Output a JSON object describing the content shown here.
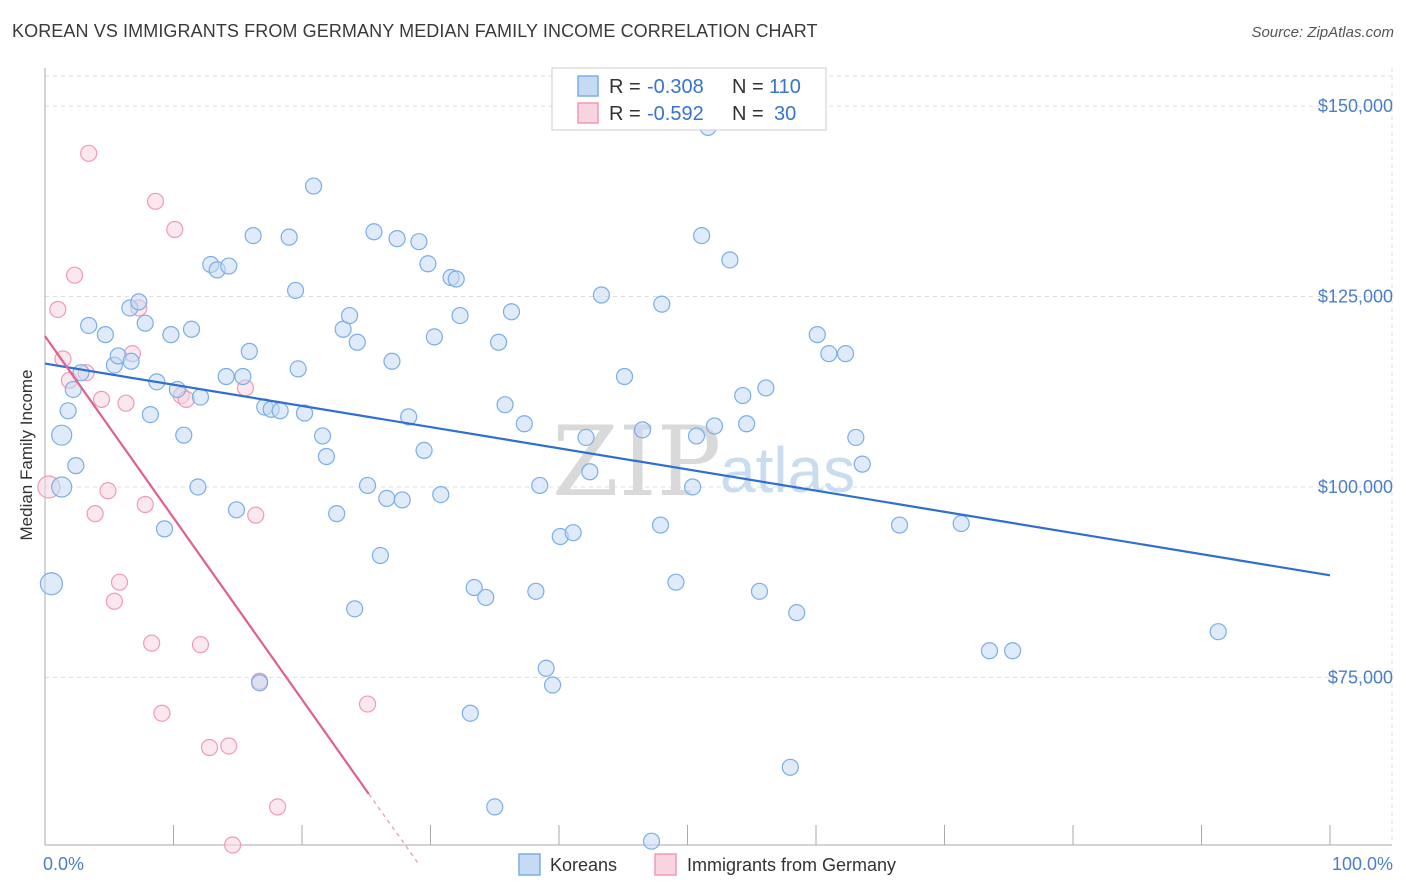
{
  "title": "KOREAN VS IMMIGRANTS FROM GERMANY MEDIAN FAMILY INCOME CORRELATION CHART",
  "source": "Source: ZipAtlas.com",
  "watermark": {
    "part1": "ZIP",
    "part2": "atlas"
  },
  "colors": {
    "koreans": "#7aaee8",
    "koreans_fill": "#c5daf3",
    "koreans_line": "#2f6fd0",
    "germany": "#f09ab8",
    "germany_fill": "#f8d3e0",
    "germany_line": "#e0608e",
    "grid": "#dddddd",
    "axis_text": "#4a7fc8"
  },
  "legend": {
    "r_label": "R =",
    "n_label": "N =",
    "koreans": {
      "r": "-0.308",
      "n": "110"
    },
    "germany": {
      "r": "-0.592",
      "n": "30"
    }
  },
  "chart_data": {
    "type": "scatter",
    "title": "KOREAN VS IMMIGRANTS FROM GERMANY MEDIAN FAMILY INCOME CORRELATION CHART",
    "xlabel": "",
    "ylabel": "Median Family Income",
    "xlim": [
      0,
      100
    ],
    "ylim": [
      53000,
      155000
    ],
    "x_tick_labels": [
      "0.0%",
      "100.0%"
    ],
    "y_ticks": [
      75000,
      100000,
      125000,
      150000
    ],
    "y_tick_labels": [
      "$75,000",
      "$100,000",
      "$125,000",
      "$150,000"
    ],
    "grid": true,
    "legend_position": "top-center",
    "series": [
      {
        "name": "Koreans",
        "trend": {
          "x": [
            0,
            100
          ],
          "y": [
            116200,
            88400
          ]
        },
        "points": [
          [
            0.5,
            87.3,
            22
          ],
          [
            1.3,
            106.8,
            20
          ],
          [
            1.3,
            100,
            20
          ],
          [
            1.8,
            110,
            16
          ],
          [
            2.2,
            112.8,
            16
          ],
          [
            2.4,
            102.8,
            16
          ],
          [
            2.8,
            115,
            16
          ],
          [
            3.4,
            121.2,
            16
          ],
          [
            4.7,
            120,
            16
          ],
          [
            5.4,
            116,
            16
          ],
          [
            5.7,
            117.2,
            16
          ],
          [
            6.7,
            116.5,
            16
          ],
          [
            6.6,
            123.5,
            16
          ],
          [
            7.3,
            124.3,
            16
          ],
          [
            7.8,
            121.5,
            16
          ],
          [
            8.2,
            109.5,
            16
          ],
          [
            8.7,
            113.8,
            16
          ],
          [
            9.3,
            94.5,
            16
          ],
          [
            9.8,
            120,
            16
          ],
          [
            10.3,
            112.8,
            16
          ],
          [
            10.8,
            106.8,
            16
          ],
          [
            11.4,
            120.7,
            16
          ],
          [
            11.9,
            100,
            16
          ],
          [
            12.1,
            111.8,
            16
          ],
          [
            12.9,
            129.2,
            16
          ],
          [
            13.4,
            128.5,
            16
          ],
          [
            14.1,
            114.5,
            16
          ],
          [
            14.3,
            129,
            16
          ],
          [
            14.9,
            97,
            16
          ],
          [
            15.4,
            114.5,
            16
          ],
          [
            15.9,
            117.8,
            16
          ],
          [
            16.2,
            133,
            16
          ],
          [
            16.7,
            74.3,
            16
          ],
          [
            17.1,
            110.5,
            16
          ],
          [
            17.6,
            110.2,
            16
          ],
          [
            18.3,
            110,
            16
          ],
          [
            19,
            132.8,
            16
          ],
          [
            19.5,
            125.8,
            16
          ],
          [
            19.7,
            115.5,
            16
          ],
          [
            20.2,
            109.7,
            16
          ],
          [
            20.9,
            139.5,
            16
          ],
          [
            21.6,
            106.7,
            16
          ],
          [
            21.9,
            104,
            16
          ],
          [
            22.7,
            96.5,
            16
          ],
          [
            23.2,
            120.7,
            16
          ],
          [
            23.7,
            122.5,
            16
          ],
          [
            24.1,
            84,
            16
          ],
          [
            24.3,
            119,
            16
          ],
          [
            25.1,
            100.2,
            16
          ],
          [
            25.6,
            133.5,
            16
          ],
          [
            26.1,
            91,
            16
          ],
          [
            26.6,
            98.5,
            16
          ],
          [
            27,
            116.5,
            16
          ],
          [
            27.4,
            132.6,
            16
          ],
          [
            27.8,
            98.3,
            16
          ],
          [
            28.3,
            109.2,
            16
          ],
          [
            29.1,
            132.2,
            16
          ],
          [
            29.5,
            104.8,
            16
          ],
          [
            29.8,
            129.3,
            16
          ],
          [
            30.3,
            119.7,
            16
          ],
          [
            30.8,
            99,
            16
          ],
          [
            31.6,
            127.5,
            16
          ],
          [
            32,
            127.3,
            16
          ],
          [
            32.3,
            122.5,
            16
          ],
          [
            33.1,
            70.3,
            16
          ],
          [
            33.4,
            86.8,
            16
          ],
          [
            34.3,
            85.5,
            16
          ],
          [
            35,
            58,
            16
          ],
          [
            35.3,
            119,
            16
          ],
          [
            35.8,
            110.8,
            16
          ],
          [
            36.3,
            123,
            16
          ],
          [
            37.3,
            108.3,
            16
          ],
          [
            38.2,
            86.3,
            16
          ],
          [
            38.5,
            100.2,
            16
          ],
          [
            39,
            76.2,
            16
          ],
          [
            39.5,
            74,
            16
          ],
          [
            40.1,
            93.5,
            16
          ],
          [
            41.1,
            94,
            16
          ],
          [
            42.1,
            106.5,
            16
          ],
          [
            42.4,
            102,
            16
          ],
          [
            43.3,
            125.2,
            16
          ],
          [
            45.1,
            114.5,
            16
          ],
          [
            46.5,
            107.5,
            16
          ],
          [
            47.2,
            53.5,
            16
          ],
          [
            47.9,
            95,
            16
          ],
          [
            48,
            124,
            16
          ],
          [
            49.1,
            87.5,
            16
          ],
          [
            50.4,
            100,
            16
          ],
          [
            50.7,
            106.7,
            16
          ],
          [
            51.1,
            133,
            16
          ],
          [
            51.6,
            147.2,
            16
          ],
          [
            52.1,
            108,
            16
          ],
          [
            53.3,
            129.8,
            16
          ],
          [
            54.3,
            112,
            16
          ],
          [
            54.6,
            108.3,
            16
          ],
          [
            55.6,
            86.3,
            16
          ],
          [
            56.1,
            113,
            16
          ],
          [
            58,
            63.2,
            16
          ],
          [
            58.5,
            83.5,
            16
          ],
          [
            60.1,
            120,
            16
          ],
          [
            61,
            117.5,
            16
          ],
          [
            62.3,
            117.5,
            16
          ],
          [
            63.1,
            106.5,
            16
          ],
          [
            63.6,
            103,
            16
          ],
          [
            66.5,
            95,
            16
          ],
          [
            71.3,
            95.2,
            16
          ],
          [
            73.5,
            78.5,
            16
          ],
          [
            75.3,
            78.5,
            16
          ],
          [
            91.3,
            81,
            16
          ]
        ]
      },
      {
        "name": "Immigrants from Germany",
        "trend": {
          "x": [
            0,
            25.2
          ],
          "y": [
            119800,
            59700
          ]
        },
        "trend_extension": {
          "x": [
            25.2,
            29
          ],
          "y": [
            59700,
            50700
          ]
        },
        "points": [
          [
            0.3,
            100,
            22
          ],
          [
            1,
            123.3,
            16
          ],
          [
            1.4,
            116.8,
            16
          ],
          [
            1.9,
            114,
            16
          ],
          [
            2.3,
            127.8,
            16
          ],
          [
            3.2,
            115,
            16
          ],
          [
            3.4,
            143.8,
            16
          ],
          [
            3.9,
            96.5,
            16
          ],
          [
            4.4,
            111.5,
            16
          ],
          [
            4.9,
            99.5,
            16
          ],
          [
            5.4,
            85,
            16
          ],
          [
            5.8,
            87.5,
            16
          ],
          [
            6.3,
            111,
            16
          ],
          [
            6.8,
            117.5,
            16
          ],
          [
            7.3,
            123.5,
            16
          ],
          [
            7.8,
            97.7,
            16
          ],
          [
            8.3,
            79.5,
            16
          ],
          [
            8.6,
            137.5,
            16
          ],
          [
            9.1,
            70.3,
            16
          ],
          [
            10.1,
            133.8,
            16
          ],
          [
            10.6,
            112,
            16
          ],
          [
            11,
            111.5,
            16
          ],
          [
            12.1,
            79.3,
            16
          ],
          [
            12.8,
            65.8,
            16
          ],
          [
            14.3,
            66,
            16
          ],
          [
            14.6,
            53,
            16
          ],
          [
            15.6,
            113,
            16
          ],
          [
            16.4,
            96.3,
            16
          ],
          [
            16.7,
            74.5,
            16
          ],
          [
            18.1,
            58,
            16
          ],
          [
            25.1,
            71.5,
            16
          ]
        ]
      }
    ]
  },
  "bottom_legend": {
    "koreans": "Koreans",
    "germany": "Immigrants from Germany"
  }
}
